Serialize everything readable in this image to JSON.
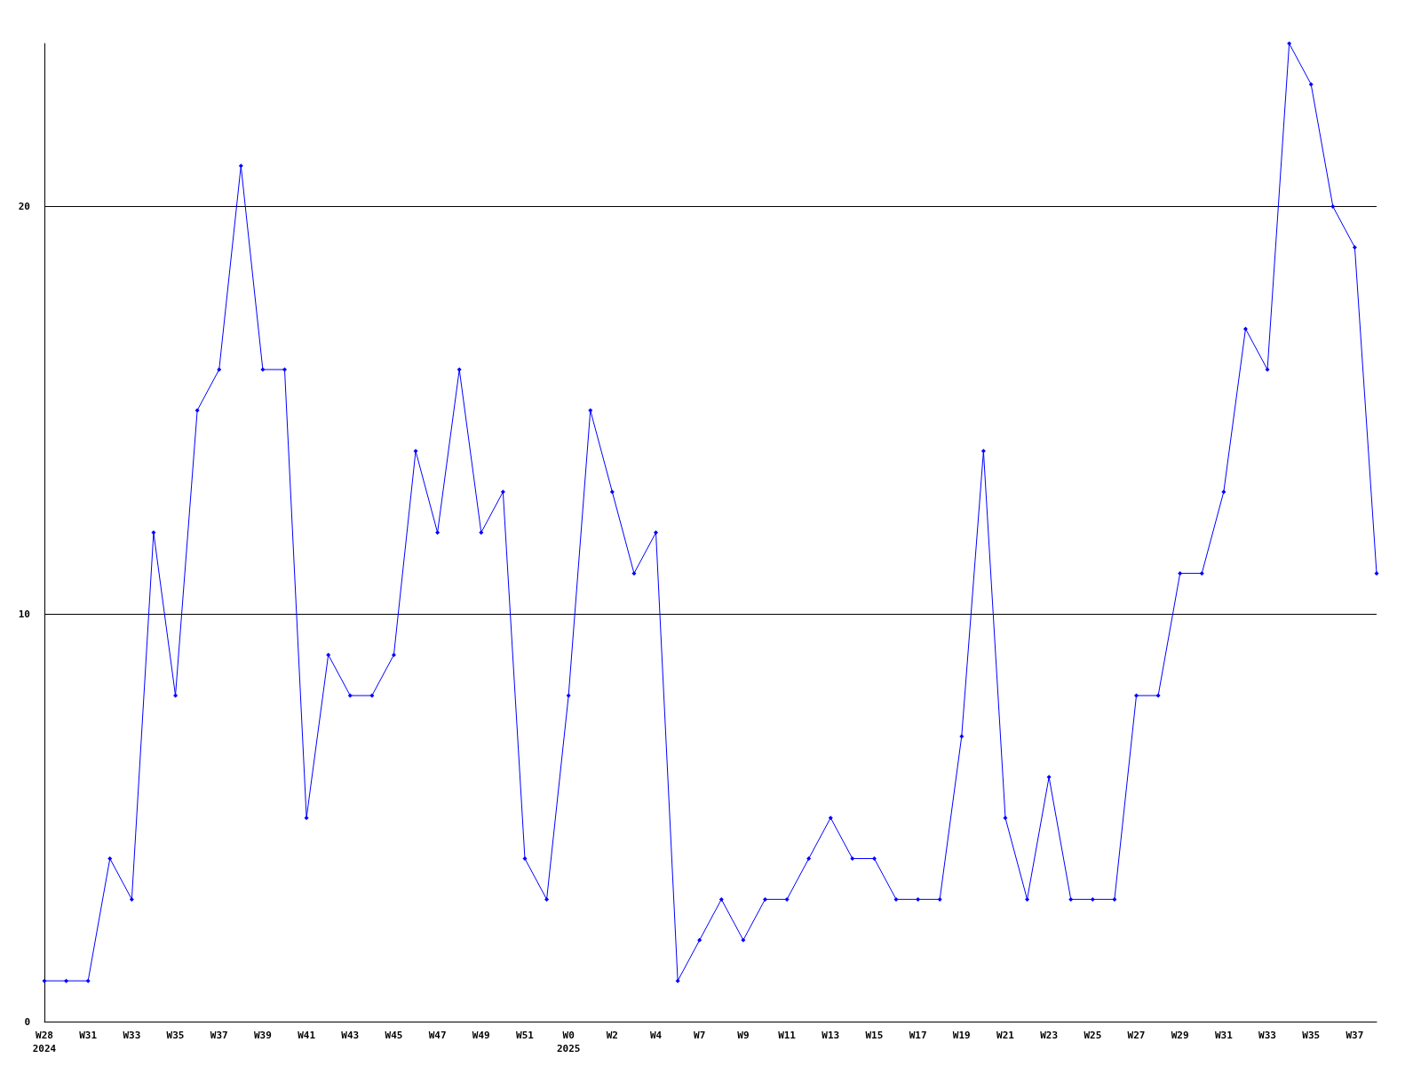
{
  "chart_data": {
    "type": "line",
    "categories": [
      "W28\n2024",
      null,
      "W31",
      null,
      "W33",
      null,
      "W35",
      null,
      "W37",
      null,
      "W39",
      null,
      "W41",
      null,
      "W43",
      null,
      "W45",
      null,
      "W47",
      null,
      "W49",
      null,
      "W51",
      null,
      "W0\n2025",
      null,
      "W2",
      null,
      "W4",
      null,
      "W7",
      null,
      "W9",
      null,
      "W11",
      null,
      "W13",
      null,
      "W15",
      null,
      "W17",
      null,
      "W19",
      null,
      "W21",
      null,
      "W23",
      null,
      "W25",
      null,
      "W27",
      null,
      "W29",
      null,
      "W31",
      null,
      "W33",
      null,
      "W35",
      null,
      "W37",
      null
    ],
    "series": [
      {
        "color": "#0000ff",
        "values": [
          1,
          1,
          1,
          4,
          3,
          12,
          8,
          15,
          16,
          21,
          16,
          16,
          5,
          9,
          8,
          8,
          9,
          14,
          12,
          16,
          12,
          13,
          4,
          3,
          8,
          15,
          13,
          11,
          12,
          1,
          2,
          3,
          2,
          3,
          3,
          4,
          5,
          4,
          4,
          3,
          3,
          3,
          7,
          14,
          5,
          3,
          6,
          3,
          3,
          3,
          8,
          8,
          11,
          11,
          13,
          17,
          16,
          24,
          23,
          20,
          19,
          11
        ]
      }
    ],
    "ylim": [
      0,
      24
    ],
    "yticks": [
      0,
      10,
      20
    ],
    "grid": "y",
    "marker": "diamond",
    "line_style": "solid"
  }
}
